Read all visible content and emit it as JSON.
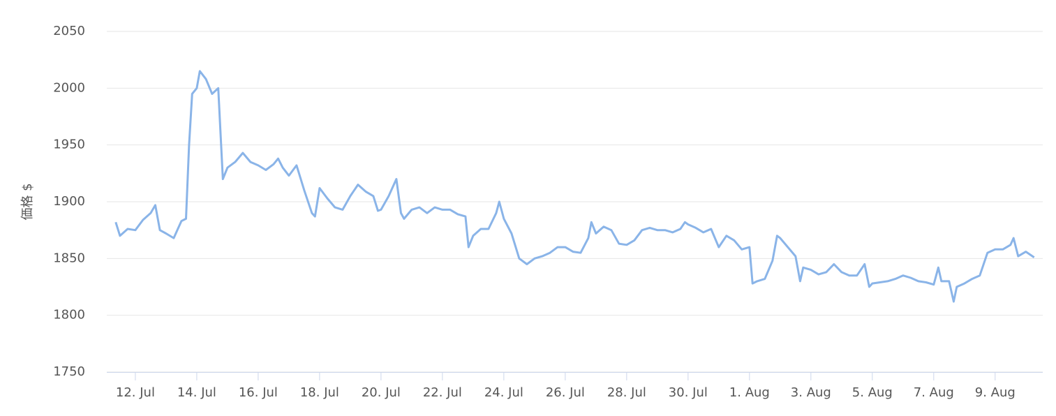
{
  "chart_data": {
    "type": "line",
    "y_label": "価格 $",
    "xlim": [
      11.07,
      41.55
    ],
    "ylim": [
      1750,
      2050
    ],
    "yticks": [
      1750,
      1800,
      1850,
      1900,
      1950,
      2000,
      2050
    ],
    "grid": true,
    "xticks": [
      {
        "value": 12,
        "label": "12. Jul"
      },
      {
        "value": 14,
        "label": "14. Jul"
      },
      {
        "value": 16,
        "label": "16. Jul"
      },
      {
        "value": 18,
        "label": "18. Jul"
      },
      {
        "value": 20,
        "label": "20. Jul"
      },
      {
        "value": 22,
        "label": "22. Jul"
      },
      {
        "value": 24,
        "label": "24. Jul"
      },
      {
        "value": 26,
        "label": "26. Jul"
      },
      {
        "value": 28,
        "label": "28. Jul"
      },
      {
        "value": 30,
        "label": "30. Jul"
      },
      {
        "value": 32,
        "label": "1. Aug"
      },
      {
        "value": 34,
        "label": "3. Aug"
      },
      {
        "value": 36,
        "label": "5. Aug"
      },
      {
        "value": 38,
        "label": "7. Aug"
      },
      {
        "value": 40,
        "label": "9. Aug"
      }
    ],
    "x": [
      11.36,
      11.5,
      11.75,
      12,
      12.25,
      12.5,
      12.65,
      12.8,
      13,
      13.25,
      13.5,
      13.65,
      13.75,
      13.85,
      14,
      14.1,
      14.3,
      14.5,
      14.7,
      14.85,
      15,
      15.25,
      15.5,
      15.75,
      16,
      16.25,
      16.5,
      16.65,
      16.8,
      17,
      17.25,
      17.5,
      17.75,
      17.85,
      18,
      18.25,
      18.5,
      18.75,
      19,
      19.25,
      19.5,
      19.75,
      19.9,
      20,
      20.25,
      20.5,
      20.65,
      20.75,
      21,
      21.25,
      21.5,
      21.75,
      22,
      22.25,
      22.5,
      22.75,
      22.85,
      23,
      23.25,
      23.5,
      23.75,
      23.85,
      24,
      24.25,
      24.5,
      24.75,
      25,
      25.25,
      25.5,
      25.75,
      26,
      26.25,
      26.5,
      26.75,
      26.85,
      27,
      27.25,
      27.5,
      27.75,
      28,
      28.25,
      28.5,
      28.75,
      29,
      29.25,
      29.5,
      29.75,
      29.9,
      30,
      30.25,
      30.5,
      30.75,
      31,
      31.25,
      31.5,
      31.75,
      32,
      32.1,
      32.25,
      32.5,
      32.75,
      32.9,
      33,
      33.25,
      33.5,
      33.65,
      33.75,
      34,
      34.25,
      34.5,
      34.75,
      35,
      35.25,
      35.5,
      35.75,
      35.9,
      36,
      36.25,
      36.5,
      36.75,
      37,
      37.25,
      37.5,
      37.75,
      38,
      38.15,
      38.25,
      38.5,
      38.65,
      38.75,
      39,
      39.25,
      39.5,
      39.75,
      40,
      40.25,
      40.5,
      40.6,
      40.75,
      41,
      41.27
    ],
    "series": [
      {
        "color": "#8ab4e8",
        "values": [
          1882,
          1870,
          1876,
          1875,
          1884,
          1890,
          1897,
          1875,
          1872,
          1868,
          1883,
          1885,
          1950,
          1995,
          2000,
          2015,
          2008,
          1995,
          2000,
          1920,
          1930,
          1935,
          1943,
          1935,
          1932,
          1928,
          1933,
          1938,
          1930,
          1923,
          1932,
          1910,
          1890,
          1887,
          1912,
          1903,
          1895,
          1893,
          1905,
          1915,
          1909,
          1905,
          1892,
          1893,
          1905,
          1920,
          1890,
          1885,
          1893,
          1895,
          1890,
          1895,
          1893,
          1893,
          1889,
          1887,
          1860,
          1870,
          1876,
          1876,
          1890,
          1900,
          1885,
          1872,
          1850,
          1845,
          1850,
          1852,
          1855,
          1860,
          1860,
          1856,
          1855,
          1868,
          1882,
          1872,
          1878,
          1875,
          1863,
          1862,
          1866,
          1875,
          1877,
          1875,
          1875,
          1873,
          1876,
          1882,
          1880,
          1877,
          1873,
          1876,
          1860,
          1870,
          1866,
          1858,
          1860,
          1828,
          1830,
          1832,
          1848,
          1870,
          1868,
          1860,
          1852,
          1830,
          1842,
          1840,
          1836,
          1838,
          1845,
          1838,
          1835,
          1835,
          1845,
          1825,
          1828,
          1829,
          1830,
          1832,
          1835,
          1833,
          1830,
          1829,
          1827,
          1842,
          1830,
          1830,
          1812,
          1825,
          1828,
          1832,
          1835,
          1855,
          1858,
          1858,
          1862,
          1868,
          1852,
          1856,
          1851
        ]
      }
    ]
  }
}
